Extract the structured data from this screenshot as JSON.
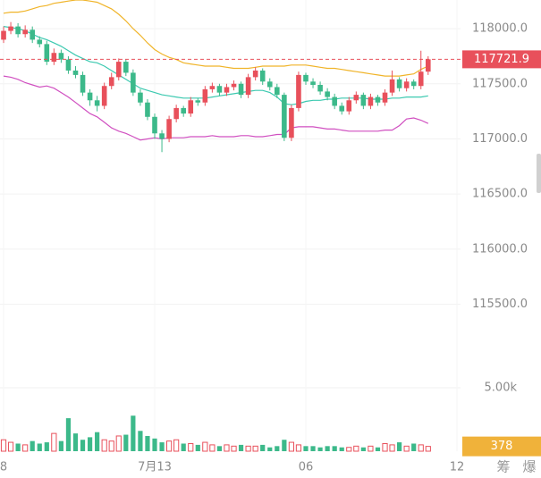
{
  "chart_data": {
    "type": "candlestick",
    "open": [
      117900,
      117980,
      118020,
      117950,
      117990,
      117900,
      117860,
      117700,
      117780,
      117720,
      117620,
      117580,
      117420,
      117350,
      117300,
      117480,
      117560,
      117700,
      117600,
      117420,
      117330,
      117200,
      117050,
      117000,
      117180,
      117280,
      117230,
      117350,
      117330,
      117450,
      117480,
      117420,
      117470,
      117500,
      117400,
      117560,
      117620,
      117520,
      117470,
      117400,
      117010,
      117280,
      117580,
      117520,
      117490,
      117430,
      117380,
      117300,
      117250,
      117350,
      117400,
      117300,
      117380,
      117330,
      117420,
      117540,
      117460,
      117520,
      117480,
      117610
    ],
    "close": [
      117980,
      118020,
      117950,
      117990,
      117900,
      117860,
      117700,
      117780,
      117720,
      117620,
      117580,
      117420,
      117350,
      117300,
      117480,
      117560,
      117700,
      117600,
      117420,
      117330,
      117200,
      117050,
      117000,
      117180,
      117280,
      117230,
      117350,
      117330,
      117450,
      117480,
      117420,
      117470,
      117500,
      117400,
      117560,
      117620,
      117520,
      117470,
      117400,
      117010,
      117280,
      117580,
      117520,
      117490,
      117430,
      117380,
      117300,
      117250,
      117350,
      117400,
      117300,
      117380,
      117330,
      117420,
      117540,
      117460,
      117520,
      117480,
      117610,
      117721.9
    ],
    "high": [
      118020,
      118060,
      118050,
      118030,
      118020,
      117930,
      117890,
      117820,
      117810,
      117750,
      117660,
      117610,
      117450,
      117390,
      117510,
      117600,
      117730,
      117720,
      117630,
      117450,
      117360,
      117230,
      117080,
      117210,
      117310,
      117300,
      117380,
      117370,
      117480,
      117510,
      117500,
      117500,
      117530,
      117520,
      117590,
      117650,
      117640,
      117550,
      117500,
      117420,
      117310,
      117610,
      117600,
      117550,
      117520,
      117460,
      117410,
      117330,
      117380,
      117430,
      117420,
      117410,
      117400,
      117450,
      117620,
      117560,
      117550,
      117540,
      117800,
      117750
    ],
    "low": [
      117870,
      117950,
      117920,
      117920,
      117870,
      117830,
      117670,
      117670,
      117690,
      117590,
      117550,
      117390,
      117300,
      117250,
      117270,
      117450,
      117530,
      117570,
      117390,
      117300,
      117170,
      117000,
      116880,
      116970,
      117150,
      117200,
      117200,
      117300,
      117300,
      117420,
      117390,
      117390,
      117440,
      117370,
      117370,
      117530,
      117490,
      117440,
      117370,
      116980,
      116980,
      117250,
      117490,
      117460,
      117400,
      117350,
      117270,
      117220,
      117220,
      117320,
      117270,
      117270,
      117300,
      117300,
      117390,
      117430,
      117430,
      117450,
      117450,
      117580
    ],
    "volume": [
      900,
      700,
      600,
      500,
      800,
      600,
      700,
      1400,
      800,
      2600,
      1400,
      900,
      1100,
      1500,
      900,
      800,
      1200,
      1300,
      2800,
      1600,
      1200,
      1000,
      700,
      800,
      900,
      600,
      600,
      500,
      700,
      500,
      400,
      500,
      400,
      500,
      400,
      400,
      500,
      300,
      400,
      900,
      700,
      500,
      400,
      400,
      300,
      400,
      400,
      300,
      300,
      400,
      300,
      400,
      300,
      600,
      500,
      700,
      400,
      600,
      500,
      378
    ],
    "upper_band": {
      "color": "#f0b429",
      "values": [
        118140,
        118150,
        118150,
        118160,
        118180,
        118200,
        118210,
        118230,
        118240,
        118250,
        118260,
        118260,
        118250,
        118240,
        118210,
        118180,
        118130,
        118070,
        118000,
        117940,
        117870,
        117810,
        117770,
        117740,
        117720,
        117690,
        117680,
        117670,
        117660,
        117660,
        117660,
        117650,
        117640,
        117640,
        117640,
        117650,
        117660,
        117660,
        117660,
        117660,
        117670,
        117670,
        117670,
        117660,
        117650,
        117640,
        117640,
        117630,
        117620,
        117610,
        117600,
        117590,
        117580,
        117570,
        117570,
        117570,
        117580,
        117590,
        117630,
        117660
      ]
    },
    "middle_band": {
      "color": "#3cc9b0",
      "values": [
        118020,
        118010,
        118000,
        117980,
        117950,
        117920,
        117900,
        117870,
        117840,
        117800,
        117760,
        117730,
        117700,
        117690,
        117660,
        117620,
        117580,
        117540,
        117500,
        117460,
        117440,
        117420,
        117400,
        117390,
        117380,
        117370,
        117370,
        117370,
        117370,
        117380,
        117390,
        117400,
        117410,
        117420,
        117430,
        117440,
        117440,
        117420,
        117380,
        117320,
        117310,
        117320,
        117340,
        117350,
        117350,
        117360,
        117360,
        117370,
        117370,
        117370,
        117370,
        117360,
        117360,
        117360,
        117370,
        117370,
        117380,
        117380,
        117380,
        117390
      ]
    },
    "lower_band": {
      "color": "#d04fc0",
      "values": [
        117570,
        117560,
        117540,
        117510,
        117490,
        117470,
        117480,
        117460,
        117420,
        117380,
        117330,
        117280,
        117230,
        117200,
        117150,
        117100,
        117070,
        117050,
        117020,
        116990,
        117000,
        117010,
        117000,
        117010,
        117010,
        117010,
        117020,
        117020,
        117020,
        117030,
        117020,
        117020,
        117020,
        117030,
        117030,
        117020,
        117020,
        117030,
        117040,
        117040,
        117100,
        117110,
        117110,
        117110,
        117100,
        117090,
        117090,
        117080,
        117070,
        117070,
        117070,
        117070,
        117070,
        117080,
        117080,
        117120,
        117180,
        117190,
        117170,
        117140
      ]
    },
    "up_color": "#e8505b",
    "down_color": "#3cb98a",
    "ylim": [
      115180,
      118260
    ],
    "yticks": [
      {
        "value": 118000,
        "label": "118000.0"
      },
      {
        "value": 117500,
        "label": "117500.0"
      },
      {
        "value": 117000,
        "label": "117000.0"
      },
      {
        "value": 116500,
        "label": "116500.0"
      },
      {
        "value": 116000,
        "label": "116000.0"
      },
      {
        "value": 115500,
        "label": "115500.0"
      }
    ],
    "y2lim": [
      0,
      8100
    ],
    "y2ticks": [
      {
        "value": 5000,
        "label": "5.00k"
      }
    ],
    "xlim": [
      -0.5,
      63.5
    ],
    "xticks": [
      {
        "value": 0,
        "label": "8"
      },
      {
        "value": 21,
        "label": "7月13"
      },
      {
        "value": 42,
        "label": "06"
      },
      {
        "value": 63,
        "label": "12"
      }
    ],
    "grid": true,
    "toolbar": [
      "筹",
      "爆"
    ]
  }
}
